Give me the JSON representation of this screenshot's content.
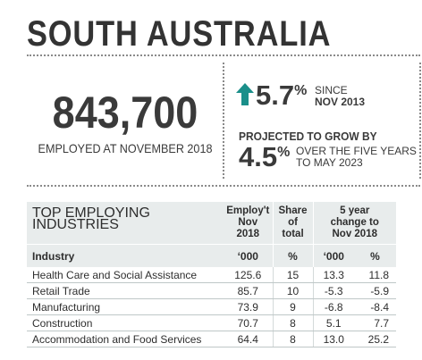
{
  "header": {
    "title": "SOUTH AUSTRALIA"
  },
  "employment": {
    "value": "843,700",
    "label": "EMPLOYED AT NOVEMBER 2018"
  },
  "growth": {
    "value": "5.7",
    "unit": "%",
    "since_line1": "SINCE",
    "since_line2": "NOV 2013",
    "icon": "arrow-up-icon",
    "icon_color": "#1a8f8a"
  },
  "projection": {
    "label": "PROJECTED TO GROW BY",
    "value": "4.5",
    "unit": "%",
    "period_line1": "OVER THE FIVE YEARS",
    "period_line2": "TO MAY 2023"
  },
  "table": {
    "title": "TOP EMPLOYING INDUSTRIES",
    "col_employ": [
      "Employ't",
      "Nov",
      "2018"
    ],
    "col_share": [
      "Share",
      "of",
      "total"
    ],
    "col_change": [
      "5 year",
      "change to",
      "Nov 2018"
    ],
    "sub_headers": [
      "Industry",
      "‘000",
      "%",
      "‘000",
      "%"
    ],
    "rows": [
      {
        "industry": "Health Care and Social Assistance",
        "employ": "125.6",
        "share": "15",
        "change_k": "13.3",
        "change_pct": "11.8"
      },
      {
        "industry": "Retail Trade",
        "employ": "85.7",
        "share": "10",
        "change_k": "-5.3",
        "change_pct": "-5.9"
      },
      {
        "industry": "Manufacturing",
        "employ": "73.9",
        "share": "9",
        "change_k": "-6.8",
        "change_pct": "-8.4"
      },
      {
        "industry": "Construction",
        "employ": "70.7",
        "share": "8",
        "change_k": "5.1",
        "change_pct": "7.7"
      },
      {
        "industry": "Accommodation and Food Services",
        "employ": "64.4",
        "share": "8",
        "change_k": "13.0",
        "change_pct": "25.2"
      }
    ]
  }
}
